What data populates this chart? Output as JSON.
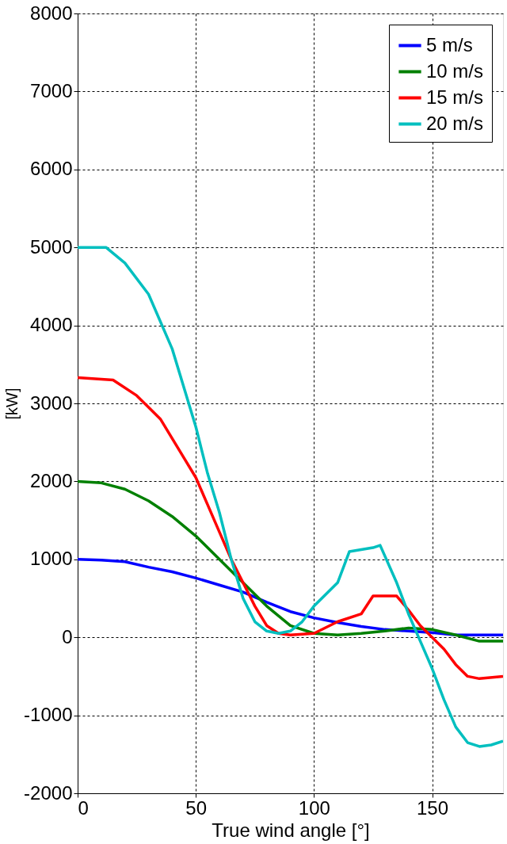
{
  "chart_data": {
    "type": "line",
    "xlabel": "True wind angle [°]",
    "ylabel": "[kW]",
    "xlim": [
      0,
      180
    ],
    "xticks": [
      0,
      50,
      100,
      150
    ],
    "ylim": [
      -2000,
      8000
    ],
    "yticks": [
      -2000,
      -1000,
      0,
      1000,
      2000,
      3000,
      4000,
      5000,
      6000,
      7000,
      8000
    ],
    "grid": true,
    "legend": "top right",
    "line_style": "solid",
    "marker": "none",
    "x": [
      0,
      10,
      20,
      30,
      40,
      50,
      60,
      70,
      80,
      90,
      100,
      110,
      120,
      130,
      140,
      150,
      160,
      170,
      180
    ],
    "series": [
      {
        "name": "5 m/s",
        "color": "#0000ff",
        "values": [
          1000,
          990,
          970,
          900,
          840,
          760,
          670,
          580,
          450,
          330,
          250,
          190,
          140,
          100,
          80,
          60,
          30,
          30,
          30
        ]
      },
      {
        "name": "10 m/s",
        "color": "#008000",
        "values": [
          2000,
          1980,
          1900,
          1750,
          1550,
          1300,
          1000,
          700,
          400,
          150,
          50,
          30,
          50,
          80,
          120,
          100,
          30,
          -50,
          -50
        ]
      },
      {
        "name": "15 m/s",
        "color": "#ff0000",
        "x": [
          0,
          15,
          25,
          35,
          45,
          50,
          55,
          60,
          65,
          70,
          75,
          80,
          85,
          90,
          100,
          110,
          120,
          125,
          135,
          140,
          145,
          150,
          155,
          160,
          165,
          170,
          180
        ],
        "values": [
          3330,
          3300,
          3100,
          2800,
          2300,
          2050,
          1700,
          1350,
          1000,
          700,
          400,
          150,
          50,
          30,
          50,
          200,
          300,
          530,
          530,
          350,
          150,
          0,
          -150,
          -350,
          -500,
          -530,
          -500
        ]
      },
      {
        "name": "20 m/s",
        "color": "#00bfbf",
        "x": [
          0,
          12,
          20,
          30,
          40,
          50,
          55,
          60,
          65,
          70,
          75,
          80,
          85,
          90,
          95,
          100,
          110,
          115,
          125,
          128,
          135,
          140,
          145,
          150,
          155,
          160,
          165,
          170,
          175,
          180
        ],
        "values": [
          5000,
          5000,
          4800,
          4400,
          3700,
          2700,
          2100,
          1600,
          1000,
          500,
          200,
          80,
          50,
          80,
          200,
          400,
          700,
          1100,
          1150,
          1180,
          700,
          300,
          -50,
          -400,
          -800,
          -1150,
          -1350,
          -1400,
          -1380,
          -1330
        ]
      }
    ]
  }
}
